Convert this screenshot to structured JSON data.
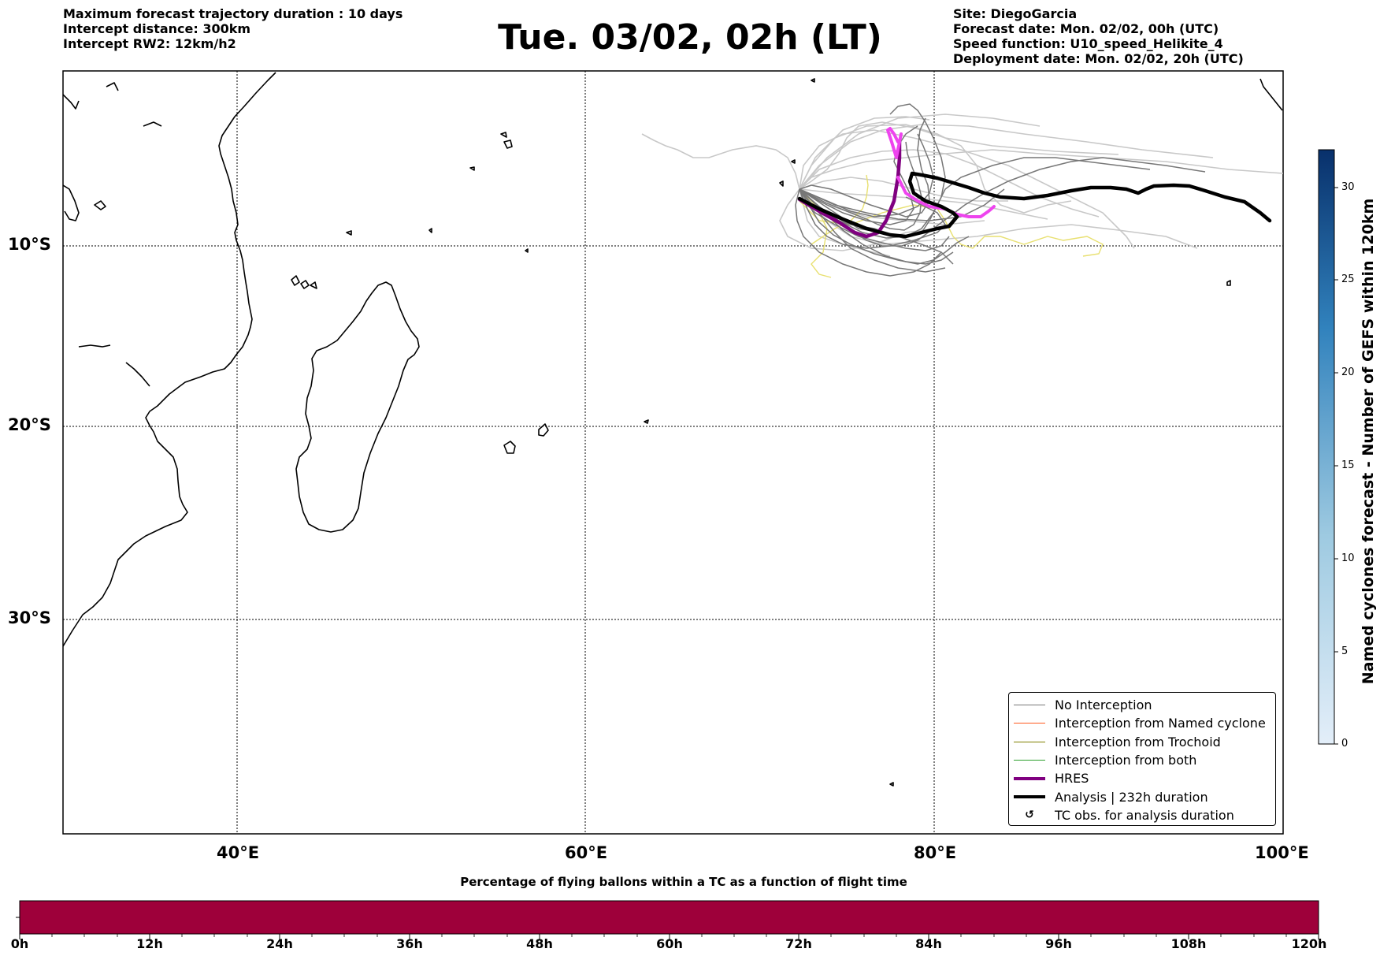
{
  "header": {
    "left_lines": [
      "Maximum forecast trajectory duration : 10 days",
      "Intercept distance: 300km",
      "Intercept RW2: 12km/h2"
    ],
    "title": "Tue. 03/02, 02h (LT)",
    "right_lines": [
      "Site: DiegoGarcia",
      "Forecast date: Mon. 02/02, 00h (UTC)",
      "Speed function: U10_speed_Helikite_4",
      "Deployment date: Mon. 02/02, 20h (UTC)"
    ]
  },
  "map": {
    "lon_labels": [
      "40°E",
      "60°E",
      "80°E",
      "100°E"
    ],
    "lat_labels": [
      "10°S",
      "20°S",
      "30°S"
    ],
    "colors": {
      "no_interception": "#777777",
      "named_cyclone": "#ff5a1f",
      "trochoid": "#808000",
      "both": "#2ca02c",
      "hres": "#800080",
      "hres_after": "#ee44ee",
      "analysis": "#000000",
      "ensemble_light": "#c8c8c8",
      "ensemble_yellow": "#e8e070"
    }
  },
  "legend": {
    "items": [
      {
        "label": "No Interception",
        "color": "#777777",
        "style": "thin"
      },
      {
        "label": "Interception from Named cyclone",
        "color": "#ff5a1f",
        "style": "thin"
      },
      {
        "label": "Interception from Trochoid",
        "color": "#808000",
        "style": "thin"
      },
      {
        "label": "Interception from both",
        "color": "#2ca02c",
        "style": "thin"
      },
      {
        "label": "HRES",
        "color": "#800080",
        "style": "thick"
      },
      {
        "label": "Analysis | 232h duration",
        "color": "#000000",
        "style": "thick"
      },
      {
        "label": "TC obs. for analysis duration",
        "symbol": "↺",
        "style": "symbol"
      }
    ]
  },
  "colorbar": {
    "title": "Named cyclones forecast - Number of GEFS within 120km",
    "ticks": [
      "0",
      "5",
      "10",
      "15",
      "20",
      "25",
      "30"
    ],
    "range": [
      0,
      32
    ],
    "color_low": "#e3eef9",
    "color_high": "#08306b"
  },
  "time_bar": {
    "title": "Percentage of flying ballons within a TC as a function of flight time",
    "labels": [
      "0h",
      "12h",
      "24h",
      "36h",
      "48h",
      "60h",
      "72h",
      "84h",
      "96h",
      "108h",
      "120h"
    ],
    "fill_color": "#9e003a"
  }
}
